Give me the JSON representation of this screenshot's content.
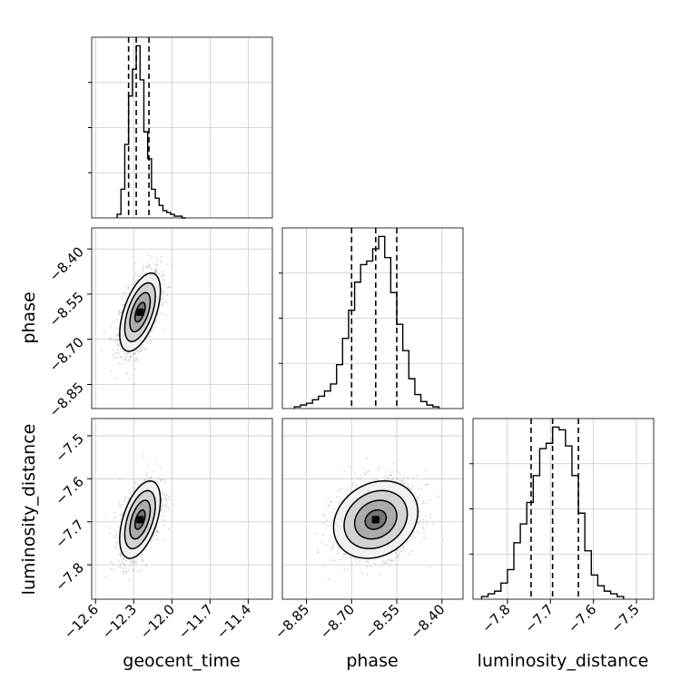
{
  "chart_data": {
    "type": "corner",
    "parameters": [
      "geocent_time",
      "phase",
      "luminosity_distance"
    ],
    "xlabels": [
      "geocent_time",
      "phase",
      "luminosity_distance"
    ],
    "ylabels": [
      "",
      "phase",
      "luminosity_distance"
    ],
    "ranges": {
      "geocent_time": [
        -12.63,
        -11.21
      ],
      "phase": [
        -8.93,
        -8.33
      ],
      "luminosity_distance": [
        -7.88,
        -7.46
      ]
    },
    "ticks": {
      "geocent_time": {
        "values": [
          -12.6,
          -12.3,
          -12.0,
          -11.7,
          -11.4
        ],
        "labels": [
          "−12.6",
          "−12.3",
          "−12.0",
          "−11.7",
          "−11.4"
        ]
      },
      "phase": {
        "values": [
          -8.85,
          -8.7,
          -8.55,
          -8.4
        ],
        "labels": [
          "−8.85",
          "−8.70",
          "−8.55",
          "−8.40"
        ]
      },
      "luminosity_distance": {
        "values": [
          -7.8,
          -7.7,
          -7.6,
          -7.5
        ],
        "labels": [
          "−7.8",
          "−7.7",
          "−7.6",
          "−7.5"
        ]
      }
    },
    "quantiles": {
      "geocent_time": [
        -12.34,
        -12.28,
        -12.18
      ],
      "phase": [
        -8.7,
        -8.62,
        -8.55
      ],
      "luminosity_distance": [
        -7.745,
        -7.695,
        -7.635
      ]
    },
    "histograms": {
      "geocent_time": {
        "bin_edges": [
          -12.43,
          -12.4,
          -12.37,
          -12.34,
          -12.31,
          -12.28,
          -12.25,
          -12.22,
          -12.19,
          -12.16,
          -12.13,
          -12.1,
          -12.07,
          -12.04,
          -12.01,
          -11.98,
          -11.95,
          -11.92,
          -11.89
        ],
        "counts": [
          2,
          16,
          41,
          68,
          83,
          96,
          77,
          48,
          33,
          16,
          11,
          7,
          4,
          3,
          2,
          1,
          1,
          0
        ]
      },
      "phase": {
        "bin_edges": [
          -8.89,
          -8.87,
          -8.85,
          -8.83,
          -8.81,
          -8.79,
          -8.77,
          -8.75,
          -8.73,
          -8.71,
          -8.69,
          -8.67,
          -8.65,
          -8.63,
          -8.61,
          -8.59,
          -8.57,
          -8.55,
          -8.53,
          -8.51,
          -8.49,
          -8.47,
          -8.45,
          -8.43,
          -8.41
        ],
        "counts": [
          1,
          2,
          3,
          5,
          7,
          10,
          14,
          25,
          40,
          56,
          72,
          82,
          84,
          91,
          98,
          86,
          66,
          48,
          33,
          17,
          8,
          4,
          2,
          1
        ]
      },
      "luminosity_distance": {
        "bin_edges": [
          -7.86,
          -7.845,
          -7.83,
          -7.815,
          -7.8,
          -7.785,
          -7.77,
          -7.755,
          -7.74,
          -7.725,
          -7.71,
          -7.695,
          -7.68,
          -7.665,
          -7.65,
          -7.635,
          -7.62,
          -7.605,
          -7.59,
          -7.575,
          -7.56,
          -7.545,
          -7.53
        ],
        "counts": [
          1,
          2,
          3,
          6,
          11,
          21,
          28,
          36,
          46,
          56,
          58,
          64,
          63,
          57,
          46,
          32,
          18,
          9,
          5,
          3,
          2,
          1
        ]
      }
    },
    "gaussians": {
      "phase|geocent_time": {
        "x": "geocent_time",
        "y": "phase",
        "mean": [
          -12.25,
          -8.61
        ],
        "sd": [
          0.08,
          0.065
        ],
        "rho": 0.55
      },
      "luminosity_distance|geocent_time": {
        "x": "geocent_time",
        "y": "luminosity_distance",
        "mean": [
          -12.25,
          -7.695
        ],
        "sd": [
          0.08,
          0.045
        ],
        "rho": 0.5
      },
      "luminosity_distance|phase": {
        "x": "phase",
        "y": "luminosity_distance",
        "mean": [
          -8.62,
          -7.695
        ],
        "sd": [
          0.07,
          0.045
        ],
        "rho": 0.2
      }
    },
    "contour_levels_sigma": [
      0.5,
      1.0,
      1.5,
      2.0
    ],
    "grid": true,
    "style": {
      "hist_color": "#000000",
      "contour_color": "#000000",
      "scatter_color": "#9a9a9a",
      "grid_color": "#c8c8c8",
      "density_colors": [
        "#f2f2f2",
        "#cfcfcf",
        "#a6a6a6",
        "#707070",
        "#3a3a3a"
      ]
    }
  }
}
